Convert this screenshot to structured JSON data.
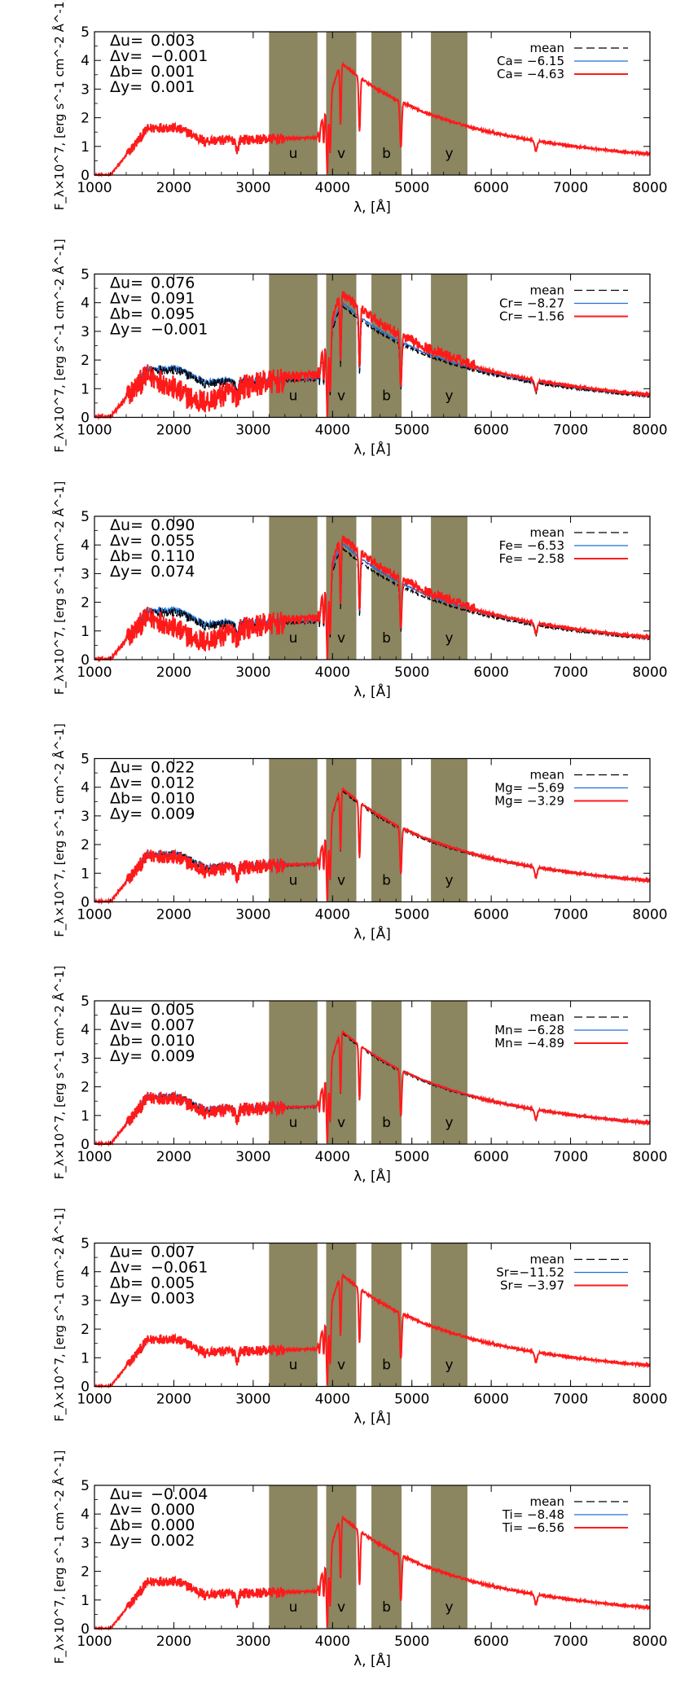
{
  "figure": {
    "xlabel": "λ, [Å]",
    "ylabel": "F_λ×10^7, [erg s^-1 cm^-2 Å^-1]",
    "xlim": [
      1000,
      8000
    ],
    "ylim": [
      0,
      5
    ],
    "xticks": [
      1000,
      2000,
      3000,
      4000,
      5000,
      6000,
      7000,
      8000
    ],
    "yticks": [
      0,
      1,
      2,
      3,
      4,
      5
    ],
    "band_color": "#8b8560",
    "bands": [
      {
        "label": "u",
        "range": [
          3200,
          3810
        ]
      },
      {
        "label": "v",
        "range": [
          3920,
          4300
        ]
      },
      {
        "label": "b",
        "range": [
          4490,
          4870
        ]
      },
      {
        "label": "y",
        "range": [
          5240,
          5700
        ]
      }
    ],
    "legend_mean_label": "mean",
    "colors": {
      "mean": "#000000",
      "low": "#1e6fd9",
      "high": "#ff1a1a"
    }
  },
  "chart_data": [
    {
      "type": "line",
      "element": "Ca",
      "deltas": [
        {
          "label": "Δu=",
          "value": "0.003"
        },
        {
          "label": "Δv=",
          "value": "−0.001"
        },
        {
          "label": "Δb=",
          "value": "0.001"
        },
        {
          "label": "Δy=",
          "value": "0.001"
        }
      ],
      "series": [
        {
          "name": "mean",
          "style": "dashed",
          "color": "#000000"
        },
        {
          "name": "Ca= −6.15",
          "color": "#1e6fd9"
        },
        {
          "name": "Ca= −4.63",
          "color": "#ff1a1a"
        }
      ],
      "uv_low": 0,
      "uv_high": 0
    },
    {
      "type": "line",
      "element": "Cr",
      "deltas": [
        {
          "label": "Δu=",
          "value": "0.076"
        },
        {
          "label": "Δv=",
          "value": "0.091"
        },
        {
          "label": "Δb=",
          "value": "0.095"
        },
        {
          "label": "Δy=",
          "value": "−0.001"
        }
      ],
      "series": [
        {
          "name": "mean",
          "style": "dashed",
          "color": "#000000"
        },
        {
          "name": "Cr= −8.27",
          "color": "#1e6fd9"
        },
        {
          "name": "Cr= −1.56",
          "color": "#ff1a1a"
        }
      ],
      "uv_low": 0.1,
      "uv_high": 1.0
    },
    {
      "type": "line",
      "element": "Fe",
      "deltas": [
        {
          "label": "Δu=",
          "value": "0.090"
        },
        {
          "label": "Δv=",
          "value": "0.055"
        },
        {
          "label": "Δb=",
          "value": "0.110"
        },
        {
          "label": "Δy=",
          "value": "0.074"
        }
      ],
      "series": [
        {
          "name": "mean",
          "style": "dashed",
          "color": "#000000"
        },
        {
          "name": "Fe= −6.53",
          "color": "#1e6fd9"
        },
        {
          "name": "Fe= −2.58",
          "color": "#ff1a1a"
        }
      ],
      "uv_low": 0.15,
      "uv_high": 0.85
    },
    {
      "type": "line",
      "element": "Mg",
      "deltas": [
        {
          "label": "Δu=",
          "value": "0.022"
        },
        {
          "label": "Δv=",
          "value": "0.012"
        },
        {
          "label": "Δb=",
          "value": "0.010"
        },
        {
          "label": "Δy=",
          "value": "0.009"
        }
      ],
      "series": [
        {
          "name": "mean",
          "style": "dashed",
          "color": "#000000"
        },
        {
          "name": "Mg= −5.69",
          "color": "#1e6fd9"
        },
        {
          "name": "Mg= −3.29",
          "color": "#ff1a1a"
        }
      ],
      "uv_low": 0.05,
      "uv_high": 0.15
    },
    {
      "type": "line",
      "element": "Mn",
      "deltas": [
        {
          "label": "Δu=",
          "value": "0.005"
        },
        {
          "label": "Δv=",
          "value": "0.007"
        },
        {
          "label": "Δb=",
          "value": "0.010"
        },
        {
          "label": "Δy=",
          "value": "0.009"
        }
      ],
      "series": [
        {
          "name": "mean",
          "style": "dashed",
          "color": "#000000"
        },
        {
          "name": "Mn= −6.28",
          "color": "#1e6fd9"
        },
        {
          "name": "Mn= −4.89",
          "color": "#ff1a1a"
        }
      ],
      "uv_low": 0.03,
      "uv_high": 0.1
    },
    {
      "type": "line",
      "element": "Sr",
      "deltas": [
        {
          "label": "Δu=",
          "value": "0.007"
        },
        {
          "label": "Δv=",
          "value": "−0.061"
        },
        {
          "label": "Δb=",
          "value": "0.005"
        },
        {
          "label": "Δy=",
          "value": "0.003"
        }
      ],
      "series": [
        {
          "name": "mean",
          "style": "dashed",
          "color": "#000000"
        },
        {
          "name": "Sr=−11.52",
          "color": "#1e6fd9"
        },
        {
          "name": "Sr= −3.97",
          "color": "#ff1a1a"
        }
      ],
      "uv_low": 0,
      "uv_high": 0
    },
    {
      "type": "line",
      "element": "Ti",
      "deltas": [
        {
          "label": "Δu=",
          "value": "−0.004"
        },
        {
          "label": "Δv=",
          "value": "0.000"
        },
        {
          "label": "Δb=",
          "value": "0.000"
        },
        {
          "label": "Δy=",
          "value": "0.002"
        }
      ],
      "series": [
        {
          "name": "mean",
          "style": "dashed",
          "color": "#000000"
        },
        {
          "name": "Ti= −8.48",
          "color": "#1e6fd9"
        },
        {
          "name": "Ti= −6.56",
          "color": "#ff1a1a"
        }
      ],
      "uv_low": 0,
      "uv_high": 0
    }
  ]
}
